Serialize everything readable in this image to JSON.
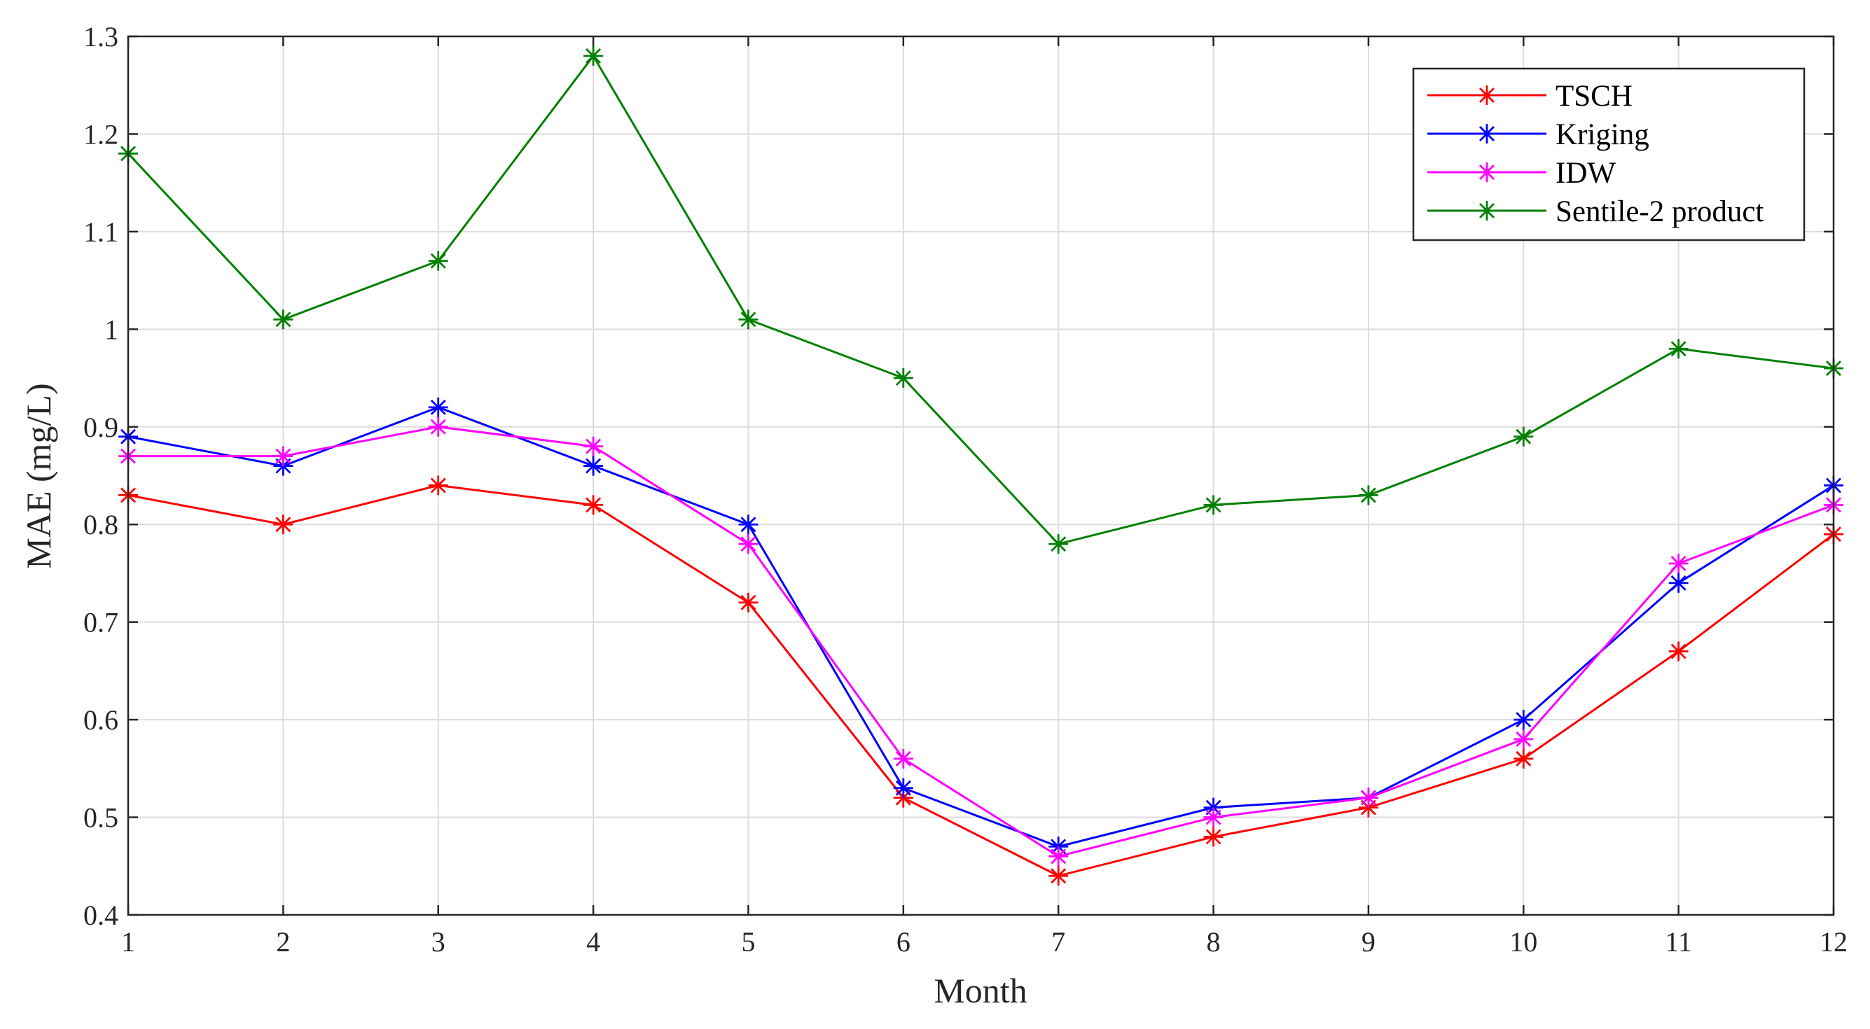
{
  "chart_data": {
    "type": "line",
    "title": "",
    "xlabel": "Month",
    "ylabel": "MAE (mg/L)",
    "x": [
      1,
      2,
      3,
      4,
      5,
      6,
      7,
      8,
      9,
      10,
      11,
      12
    ],
    "xlim": [
      1,
      12
    ],
    "ylim": [
      0.4,
      1.3
    ],
    "xticks": [
      "1",
      "2",
      "3",
      "4",
      "5",
      "6",
      "7",
      "8",
      "9",
      "10",
      "11",
      "12"
    ],
    "yticks": [
      "0.4",
      "0.5",
      "0.6",
      "0.7",
      "0.8",
      "0.9",
      "1",
      "1.1",
      "1.2",
      "1.3"
    ],
    "grid": true,
    "legend_position": "top-right",
    "marker": "asterisk",
    "series": [
      {
        "name": "TSCH",
        "color": "#ff0000",
        "values": [
          0.83,
          0.8,
          0.84,
          0.82,
          0.72,
          0.52,
          0.44,
          0.48,
          0.51,
          0.56,
          0.67,
          0.79
        ]
      },
      {
        "name": "Kriging",
        "color": "#0000ff",
        "values": [
          0.89,
          0.86,
          0.92,
          0.86,
          0.8,
          0.53,
          0.47,
          0.51,
          0.52,
          0.6,
          0.74,
          0.84
        ]
      },
      {
        "name": "IDW",
        "color": "#ff00ff",
        "values": [
          0.87,
          0.87,
          0.9,
          0.88,
          0.78,
          0.56,
          0.46,
          0.5,
          0.52,
          0.58,
          0.76,
          0.82
        ]
      },
      {
        "name": "Sentile-2 product",
        "color": "#008000",
        "values": [
          1.18,
          1.01,
          1.07,
          1.28,
          1.01,
          0.95,
          0.78,
          0.82,
          0.83,
          0.89,
          0.98,
          0.96
        ]
      }
    ]
  }
}
